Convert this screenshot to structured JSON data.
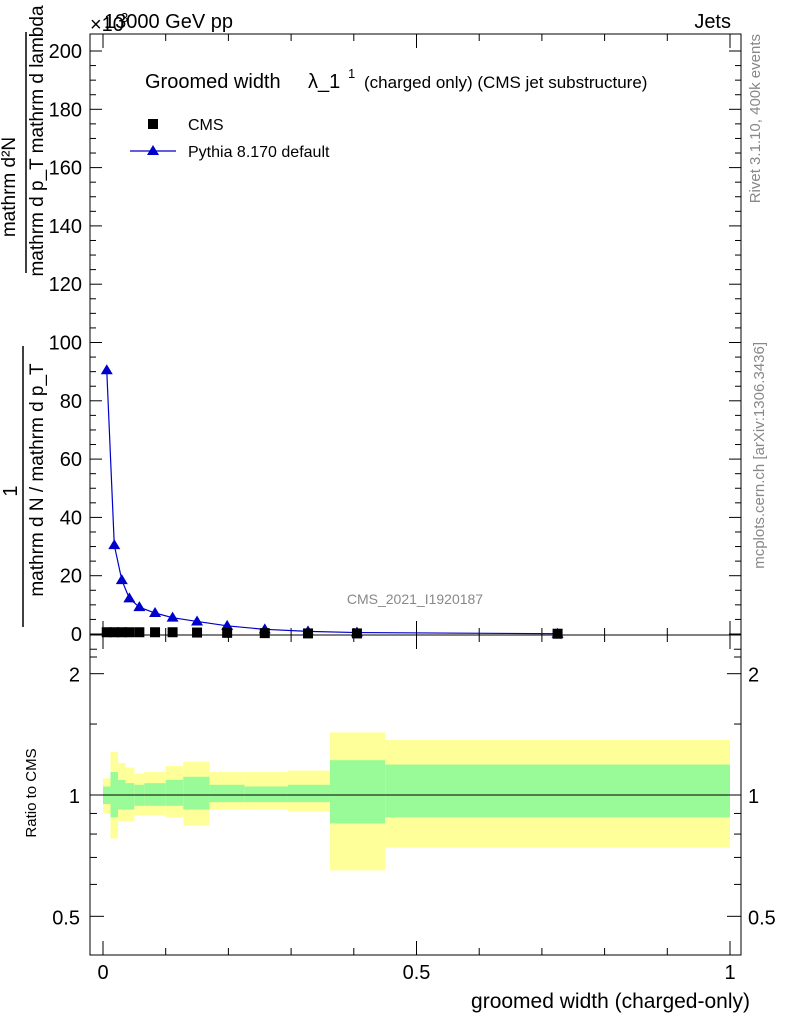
{
  "header": {
    "energy": "13000 GeV pp",
    "category": "Jets",
    "exponent": "×10",
    "exponent_power": "3"
  },
  "side_text": {
    "rivet": "Rivet 3.1.10,  400k events",
    "mcplots": "mcplots.cern.ch [arXiv:1306.3436]"
  },
  "colors": {
    "mc_line": "#0000cc",
    "band_stat": "#98fb98",
    "band_total": "#ffff99",
    "data_marker": "#000000",
    "watermark": "#888888"
  },
  "chart_data": [
    {
      "type": "line",
      "title": "Groomed width λ_1^1 (charged only) (CMS jet substructure)",
      "title_main": "Groomed width",
      "title_lambda": "λ_1",
      "title_sup": "1",
      "title_tail": "(charged only) (CMS jet substructure)",
      "ylabel_numerator_top": "mathrm d²N",
      "ylabel_numerator_bottom": "mathrm d p_T mathrm d lambda",
      "ylabel_prefix": "1",
      "ylabel_denominator": "mathrm d N / mathrm d p_T",
      "watermark": "CMS_2021_I1920187",
      "xlim": [
        0,
        1
      ],
      "ylim": [
        0,
        205
      ],
      "y_ticks": [
        "0",
        "20",
        "40",
        "60",
        "80",
        "100",
        "120",
        "140",
        "160",
        "180",
        "200"
      ],
      "legend_placement": "top-left",
      "series": [
        {
          "name": "CMS",
          "marker": "square",
          "x": [
            0.006,
            0.018,
            0.03,
            0.042,
            0.058,
            0.083,
            0.111,
            0.15,
            0.198,
            0.258,
            0.327,
            0.405,
            0.725
          ],
          "y": [
            0.6,
            0.6,
            0.6,
            0.6,
            0.6,
            0.6,
            0.6,
            0.5,
            0.4,
            0.3,
            0.2,
            0.2,
            0.1
          ]
        },
        {
          "name": "Pythia 8.170 default",
          "marker": "triangle",
          "x": [
            0.006,
            0.018,
            0.03,
            0.042,
            0.058,
            0.083,
            0.111,
            0.15,
            0.198,
            0.258,
            0.327,
            0.405,
            0.725
          ],
          "y": [
            90.5,
            30.5,
            18.5,
            12.2,
            9.2,
            7.2,
            5.6,
            4.3,
            2.8,
            1.6,
            0.9,
            0.5,
            0.1
          ]
        }
      ]
    },
    {
      "type": "area",
      "ylabel": "Ratio to CMS",
      "xlabel": "groomed width (charged-only)",
      "xlim": [
        0,
        1
      ],
      "ylim": [
        0.4,
        2.4
      ],
      "y_scale": "log",
      "y_ticks": [
        "0.5",
        "1",
        "2"
      ],
      "x_ticks": [
        "0",
        "0.5",
        "1"
      ],
      "bins": [
        {
          "lo": 0.0,
          "hi": 0.012,
          "stat_lo": 0.95,
          "stat_hi": 1.05,
          "tot_lo": 0.9,
          "tot_hi": 1.1
        },
        {
          "lo": 0.012,
          "hi": 0.024,
          "stat_lo": 0.88,
          "stat_hi": 1.14,
          "tot_lo": 0.78,
          "tot_hi": 1.28
        },
        {
          "lo": 0.024,
          "hi": 0.036,
          "stat_lo": 0.92,
          "stat_hi": 1.09,
          "tot_lo": 0.86,
          "tot_hi": 1.2
        },
        {
          "lo": 0.036,
          "hi": 0.05,
          "stat_lo": 0.92,
          "stat_hi": 1.07,
          "tot_lo": 0.86,
          "tot_hi": 1.17
        },
        {
          "lo": 0.05,
          "hi": 0.066,
          "stat_lo": 0.94,
          "stat_hi": 1.06,
          "tot_lo": 0.89,
          "tot_hi": 1.13
        },
        {
          "lo": 0.066,
          "hi": 0.1,
          "stat_lo": 0.94,
          "stat_hi": 1.07,
          "tot_lo": 0.89,
          "tot_hi": 1.14
        },
        {
          "lo": 0.1,
          "hi": 0.128,
          "stat_lo": 0.94,
          "stat_hi": 1.09,
          "tot_lo": 0.88,
          "tot_hi": 1.18
        },
        {
          "lo": 0.128,
          "hi": 0.17,
          "stat_lo": 0.92,
          "stat_hi": 1.11,
          "tot_lo": 0.84,
          "tot_hi": 1.21
        },
        {
          "lo": 0.17,
          "hi": 0.226,
          "stat_lo": 0.96,
          "stat_hi": 1.06,
          "tot_lo": 0.92,
          "tot_hi": 1.14
        },
        {
          "lo": 0.226,
          "hi": 0.295,
          "stat_lo": 0.96,
          "stat_hi": 1.05,
          "tot_lo": 0.92,
          "tot_hi": 1.14
        },
        {
          "lo": 0.295,
          "hi": 0.362,
          "stat_lo": 0.96,
          "stat_hi": 1.06,
          "tot_lo": 0.91,
          "tot_hi": 1.15
        },
        {
          "lo": 0.362,
          "hi": 0.45,
          "stat_lo": 0.85,
          "stat_hi": 1.22,
          "tot_lo": 0.65,
          "tot_hi": 1.43
        },
        {
          "lo": 0.45,
          "hi": 1.0,
          "stat_lo": 0.88,
          "stat_hi": 1.19,
          "tot_lo": 0.74,
          "tot_hi": 1.37
        }
      ]
    }
  ]
}
